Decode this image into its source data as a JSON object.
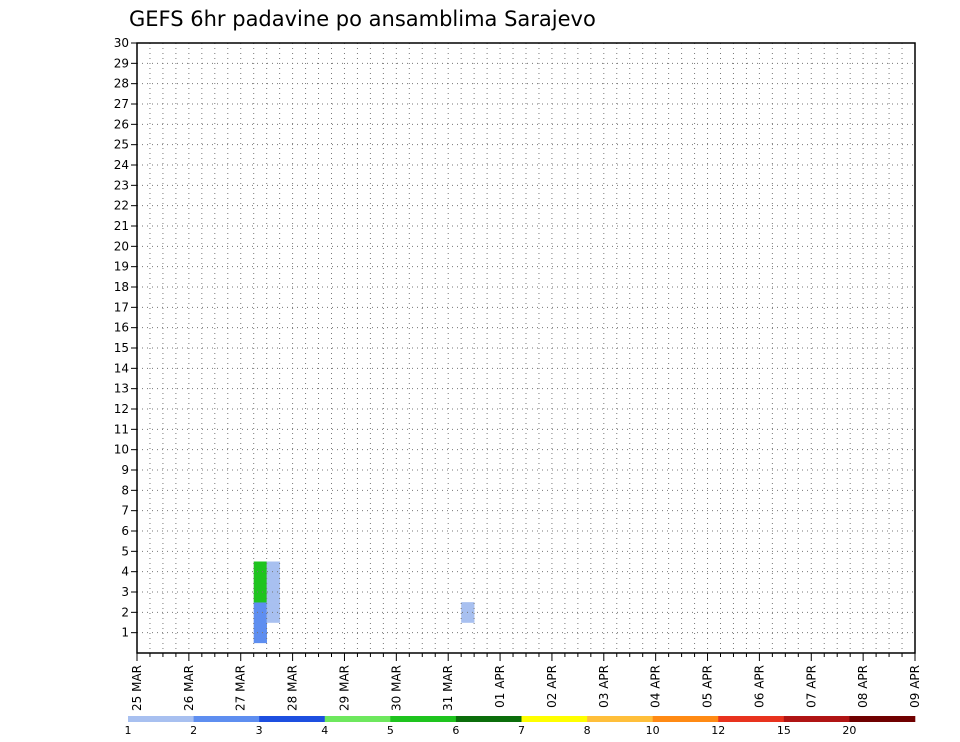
{
  "chart_data": {
    "type": "heatmap",
    "title": "GEFS 6hr padavine po ansamblima Sarajevo",
    "xlabel": "",
    "ylabel": "",
    "x_tick_labels": [
      "25 MAR",
      "26 MAR",
      "27 MAR",
      "28 MAR",
      "29 MAR",
      "30 MAR",
      "31 MAR",
      "01 APR",
      "02 APR",
      "03 APR",
      "04 APR",
      "05 APR",
      "06 APR",
      "07 APR",
      "08 APR",
      "09 APR"
    ],
    "y_tick_labels": [
      "1",
      "2",
      "3",
      "4",
      "5",
      "6",
      "7",
      "8",
      "9",
      "10",
      "11",
      "12",
      "13",
      "14",
      "15",
      "16",
      "17",
      "18",
      "19",
      "20",
      "21",
      "22",
      "23",
      "24",
      "25",
      "26",
      "27",
      "28",
      "29",
      "30"
    ],
    "grid": true,
    "colorbar": {
      "labels": [
        "1",
        "2",
        "3",
        "4",
        "5",
        "6",
        "7",
        "8",
        "10",
        "12",
        "15",
        "20"
      ],
      "colors": [
        "#a8c0f0",
        "#5e8ef0",
        "#1d4fe0",
        "#6ee85e",
        "#1ec41e",
        "#0b6e0b",
        "#ffff00",
        "#ffbf3a",
        "#ff8a14",
        "#e8321e",
        "#b01414",
        "#700000"
      ]
    },
    "cell_value_meaning": "colour class index 1-12 (matches colorbar order); 0 = below 1",
    "row_order": "member 0 (bottom) to 30 (top)",
    "column_order": "6-hour steps from 25 MAR 00z",
    "cells": [
      "0000000000000000000000000000000000000000000000000000000000000000000000000000000000000000000000000000000000000000000000000000000000000000000000000000000000000000",
      "0000000002000000000000000000000000000000000000000000000000000000000000000000000000000000000000000000000000000000000000000000000000000000000000000000000000000000",
      "0000000002100000000000000100000000000000000000000000000000000000000000000000000000000000000000000000000000000000000000000000000000000000000000000000000000000000",
      "0000000005100000000000000000000000000000000000000000000000000000000000000000000000000000000000000000000000000000000000000000000000000000000000000000000000000000",
      "0000000005100000000000000000000000000000000000000000000000000000000000000000000000000000000000000000000000000000000000000000000000000000000000000000000000000000"
    ]
  }
}
